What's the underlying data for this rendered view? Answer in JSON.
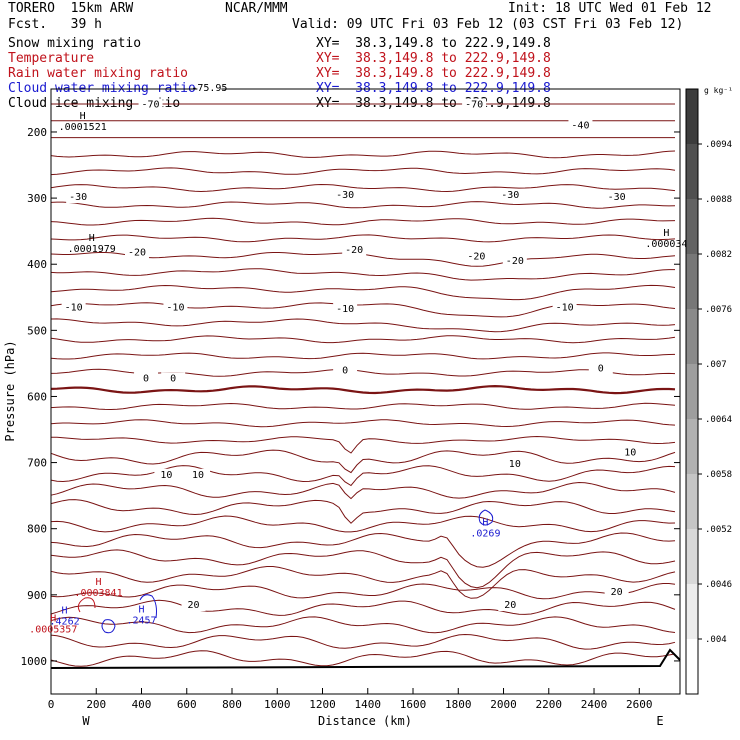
{
  "header": {
    "model": "TORERO  15km ARW",
    "org": "NCAR/MMM",
    "init": "Init: 18 UTC Wed 01 Feb 12",
    "fcst": "Fcst.   39 h",
    "valid": "Valid: 09 UTC Fri 03 Feb 12 (03 CST Fri 03 Feb 12)"
  },
  "fields": [
    {
      "label": "Snow mixing ratio",
      "xy": "XY=  38.3,149.8 to 222.9,149.8",
      "color": "#000000"
    },
    {
      "label": "Temperature",
      "xy": "XY=  38.3,149.8 to 222.9,149.8",
      "color": "#c0121b"
    },
    {
      "label": "Rain water mixing ratio",
      "xy": "XY=  38.3,149.8 to 222.9,149.8",
      "color": "#c0121b"
    },
    {
      "label": "Cloud water mixing ratio",
      "xy": "XY=  38.3,149.8 to 222.9,149.8",
      "color": "#1a1ad0"
    },
    {
      "label": "Cloud ice mixing ratio",
      "xy": "XY=  38.3,149.8 to 222.9,149.8",
      "color": "#000000"
    }
  ],
  "chart_data": {
    "type": "contour",
    "xlabel": "Distance (km)",
    "ylabel": "Pressure (hPa)",
    "x_ticks": [
      0,
      200,
      400,
      600,
      800,
      1000,
      1200,
      1400,
      1600,
      1800,
      2000,
      2200,
      2400,
      2600
    ],
    "xlim": [
      0,
      2780
    ],
    "y_ticks": [
      200,
      300,
      400,
      500,
      600,
      700,
      800,
      900,
      1000
    ],
    "ylim": [
      1050,
      135
    ],
    "x_end_labels": {
      "left": "W",
      "right": "E"
    },
    "colorbar": {
      "unit": "g kg⁻¹",
      "ticks": [
        ".0094",
        ".0088",
        ".0082",
        ".0076",
        ".007",
        ".0064",
        ".0058",
        ".0052",
        ".0046",
        ".004"
      ]
    },
    "temperature_labels": [
      {
        "text": "-75.95",
        "x": 700,
        "p": 138
      },
      {
        "text": "-70",
        "x": 440,
        "p": 163
      },
      {
        "text": "-70",
        "x": 1870,
        "p": 163
      },
      {
        "text": "-40",
        "x": 2340,
        "p": 195
      },
      {
        "text": "-30",
        "x": 120,
        "p": 303
      },
      {
        "text": "-30",
        "x": 1300,
        "p": 300
      },
      {
        "text": "-30",
        "x": 2030,
        "p": 300
      },
      {
        "text": "-30",
        "x": 2500,
        "p": 303
      },
      {
        "text": "-20",
        "x": 380,
        "p": 387
      },
      {
        "text": "-20",
        "x": 1340,
        "p": 383
      },
      {
        "text": "-20",
        "x": 1880,
        "p": 393
      },
      {
        "text": "-20",
        "x": 2050,
        "p": 400
      },
      {
        "text": "-10",
        "x": 100,
        "p": 470
      },
      {
        "text": "-10",
        "x": 550,
        "p": 470
      },
      {
        "text": "-10",
        "x": 1300,
        "p": 472
      },
      {
        "text": "-10",
        "x": 2270,
        "p": 470
      },
      {
        "text": "0",
        "x": 420,
        "p": 577
      },
      {
        "text": "0",
        "x": 540,
        "p": 577
      },
      {
        "text": "0",
        "x": 1300,
        "p": 565
      },
      {
        "text": "0",
        "x": 2430,
        "p": 562
      },
      {
        "text": "10",
        "x": 510,
        "p": 723
      },
      {
        "text": "10",
        "x": 650,
        "p": 723
      },
      {
        "text": "10",
        "x": 2050,
        "p": 707
      },
      {
        "text": "10",
        "x": 2560,
        "p": 689
      },
      {
        "text": "20",
        "x": 630,
        "p": 920
      },
      {
        "text": "20",
        "x": 2030,
        "p": 920
      },
      {
        "text": "20",
        "x": 2500,
        "p": 900
      }
    ],
    "extrema": [
      {
        "text": "H",
        "value": ".0001521",
        "x": 140,
        "p": 180,
        "color": "#000000"
      },
      {
        "text": "H",
        "value": ".0001979",
        "x": 180,
        "p": 365,
        "color": "#000000"
      },
      {
        "text": "H",
        "value": ".000034",
        "x": 2720,
        "p": 357,
        "color": "#000000"
      },
      {
        "text": "H",
        "value": ".0269",
        "x": 1920,
        "p": 795,
        "color": "#1a1ad0"
      },
      {
        "text": "H",
        "value": ".0003841",
        "x": 210,
        "p": 885,
        "color": "#c0121b"
      },
      {
        "text": "H",
        "value": ".4262",
        "x": 60,
        "p": 928,
        "color": "#1a1ad0"
      },
      {
        "text": "H",
        "value": ".0005357",
        "x": 10,
        "p": 940,
        "color": "#c0121b"
      },
      {
        "text": "H",
        "value": ".2457",
        "x": 400,
        "p": 927,
        "color": "#1a1ad0"
      }
    ]
  }
}
